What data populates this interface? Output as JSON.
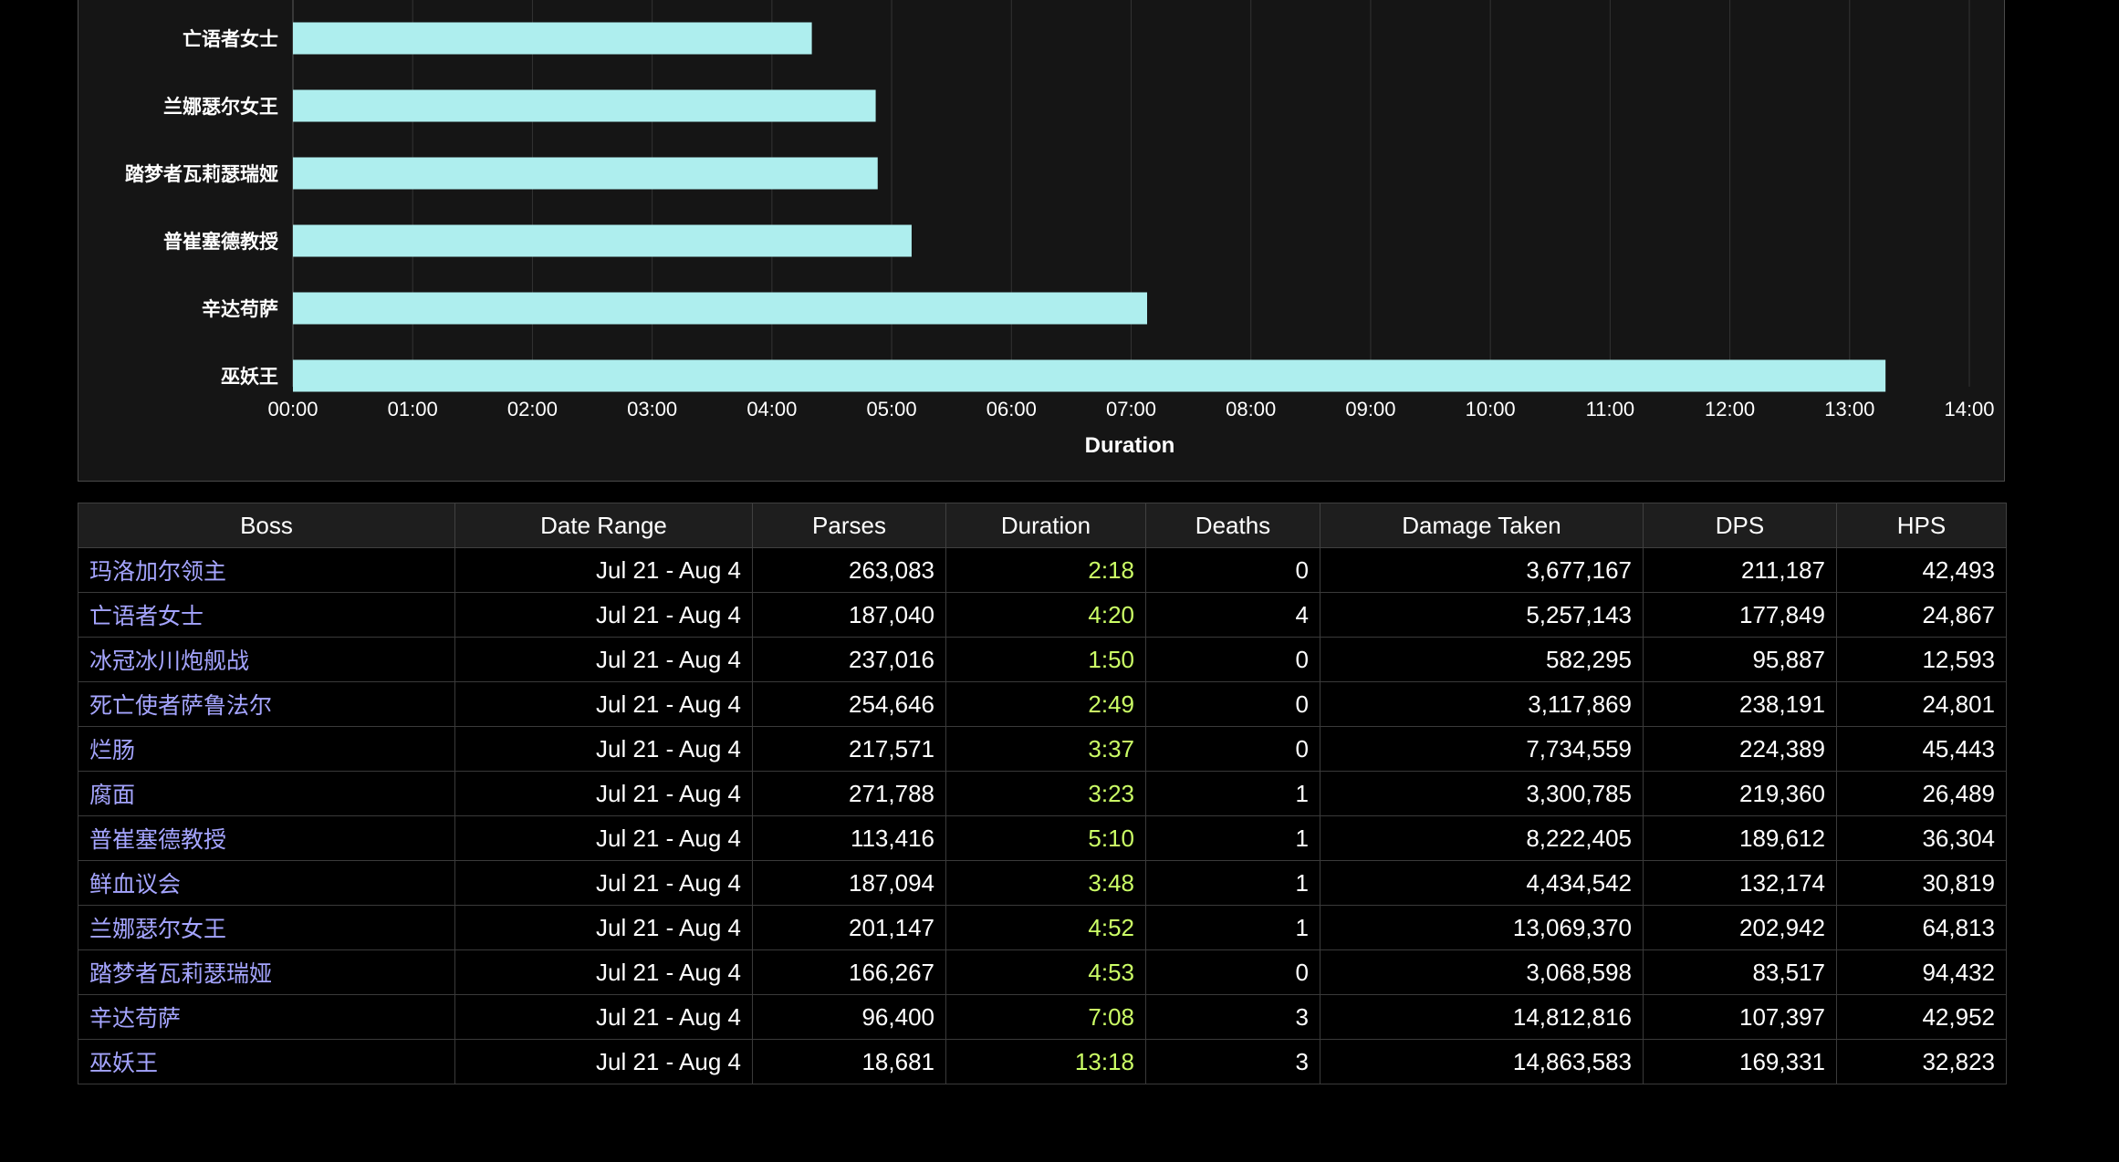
{
  "colors": {
    "bar": "#aeeeee",
    "boss_link": "#a5a5ff",
    "duration_text": "#ccff66"
  },
  "chart_data": {
    "type": "bar",
    "orientation": "horizontal",
    "categories": [
      "亡语者女士",
      "兰娜瑟尔女王",
      "踏梦者瓦莉瑟瑞娅",
      "普崔塞德教授",
      "辛达苟萨",
      "巫妖王"
    ],
    "values_seconds": [
      260,
      292,
      293,
      310,
      428,
      798
    ],
    "xlabel": "Duration",
    "xlim_seconds": [
      0,
      840
    ],
    "x_ticks": [
      "00:00",
      "01:00",
      "02:00",
      "03:00",
      "04:00",
      "05:00",
      "06:00",
      "07:00",
      "08:00",
      "09:00",
      "10:00",
      "11:00",
      "12:00",
      "13:00",
      "14:00"
    ],
    "grid": "vertical"
  },
  "table": {
    "headers": [
      "Boss",
      "Date Range",
      "Parses",
      "Duration",
      "Deaths",
      "Damage Taken",
      "DPS",
      "HPS"
    ],
    "rows": [
      [
        "玛洛加尔领主",
        "Jul 21 - Aug 4",
        "263,083",
        "2:18",
        "0",
        "3,677,167",
        "211,187",
        "42,493"
      ],
      [
        "亡语者女士",
        "Jul 21 - Aug 4",
        "187,040",
        "4:20",
        "4",
        "5,257,143",
        "177,849",
        "24,867"
      ],
      [
        "冰冠冰川炮舰战",
        "Jul 21 - Aug 4",
        "237,016",
        "1:50",
        "0",
        "582,295",
        "95,887",
        "12,593"
      ],
      [
        "死亡使者萨鲁法尔",
        "Jul 21 - Aug 4",
        "254,646",
        "2:49",
        "0",
        "3,117,869",
        "238,191",
        "24,801"
      ],
      [
        "烂肠",
        "Jul 21 - Aug 4",
        "217,571",
        "3:37",
        "0",
        "7,734,559",
        "224,389",
        "45,443"
      ],
      [
        "腐面",
        "Jul 21 - Aug 4",
        "271,788",
        "3:23",
        "1",
        "3,300,785",
        "219,360",
        "26,489"
      ],
      [
        "普崔塞德教授",
        "Jul 21 - Aug 4",
        "113,416",
        "5:10",
        "1",
        "8,222,405",
        "189,612",
        "36,304"
      ],
      [
        "鲜血议会",
        "Jul 21 - Aug 4",
        "187,094",
        "3:48",
        "1",
        "4,434,542",
        "132,174",
        "30,819"
      ],
      [
        "兰娜瑟尔女王",
        "Jul 21 - Aug 4",
        "201,147",
        "4:52",
        "1",
        "13,069,370",
        "202,942",
        "64,813"
      ],
      [
        "踏梦者瓦莉瑟瑞娅",
        "Jul 21 - Aug 4",
        "166,267",
        "4:53",
        "0",
        "3,068,598",
        "83,517",
        "94,432"
      ],
      [
        "辛达苟萨",
        "Jul 21 - Aug 4",
        "96,400",
        "7:08",
        "3",
        "14,812,816",
        "107,397",
        "42,952"
      ],
      [
        "巫妖王",
        "Jul 21 - Aug 4",
        "18,681",
        "13:18",
        "3",
        "14,863,583",
        "169,331",
        "32,823"
      ]
    ]
  }
}
